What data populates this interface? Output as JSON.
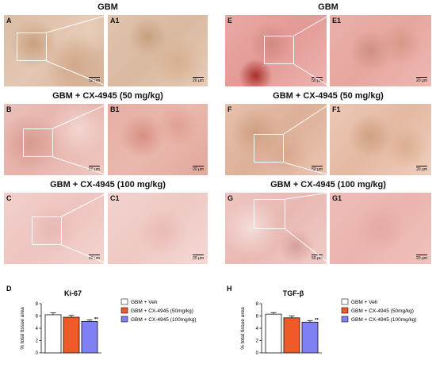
{
  "left_column": {
    "rows": [
      {
        "title": "GBM",
        "panels": [
          "A",
          "A1"
        ],
        "scales": [
          "50 μm",
          "20 μm"
        ]
      },
      {
        "title": "GBM + CX-4945 (50 mg/kg)",
        "panels": [
          "B",
          "B1"
        ],
        "scales": [
          "50 μm",
          "20 μm"
        ]
      },
      {
        "title": "GBM + CX-4945 (100 mg/kg)",
        "panels": [
          "C",
          "C1"
        ],
        "scales": [
          "50 μm",
          "20 μm"
        ]
      }
    ]
  },
  "right_column": {
    "rows": [
      {
        "title": "GBM",
        "panels": [
          "E",
          "E1"
        ],
        "scales": [
          "50 μm",
          "20 μm"
        ]
      },
      {
        "title": "GBM + CX-4945 (50 mg/kg)",
        "panels": [
          "F",
          "F1"
        ],
        "scales": [
          "50 μm",
          "20 μm"
        ]
      },
      {
        "title": "GBM + CX-4945 (100 mg/kg)",
        "panels": [
          "G",
          "G1"
        ],
        "scales": [
          "50 μm",
          "20 μm"
        ]
      }
    ]
  },
  "colors": {
    "veh": "#ffffff",
    "cx50": "#f05a28",
    "cx100": "#8080f5",
    "tissue_left_top": "#d9b49a",
    "tissue_pink": "#ebb8b4"
  },
  "chart_data": [
    {
      "type": "bar",
      "panel_letter": "D",
      "title": "Ki-67",
      "ylabel": "% total tissue area",
      "ylim": [
        0,
        8
      ],
      "yticks": [
        "0",
        "2",
        "4",
        "6",
        "8"
      ],
      "categories": [
        "GBM + Veh",
        "GBM + CX-4945 (50mg/kg)",
        "GBM + CX-4945 (100mg/kg)"
      ],
      "values": [
        6.2,
        5.8,
        5.1
      ],
      "errors": [
        0.3,
        0.3,
        0.25
      ],
      "significance": [
        "",
        "",
        "**"
      ],
      "legend": [
        "GBM + Veh",
        "GBM + CX-4945 (50mg/kg)",
        "GBM + CX-4945 (100mg/kg)"
      ],
      "legend_position": "top-right"
    },
    {
      "type": "bar",
      "panel_letter": "H",
      "title": "TGF-β",
      "ylabel": "% total tissue area",
      "ylim": [
        0,
        8
      ],
      "yticks": [
        "0",
        "2",
        "4",
        "6",
        "8"
      ],
      "categories": [
        "GBM + Veh",
        "GBM + CX-4945 (50mg/kg)",
        "GBM + CX-4945 (100mg/kg)"
      ],
      "values": [
        6.3,
        5.7,
        5.0
      ],
      "errors": [
        0.25,
        0.3,
        0.25
      ],
      "significance": [
        "",
        "",
        "**"
      ],
      "legend": [
        "GBM + Veh",
        "GBM + CX-4945 (50mg/kg)",
        "GBM + CX-4945 (100mg/kg)"
      ],
      "legend_position": "top-right"
    }
  ]
}
